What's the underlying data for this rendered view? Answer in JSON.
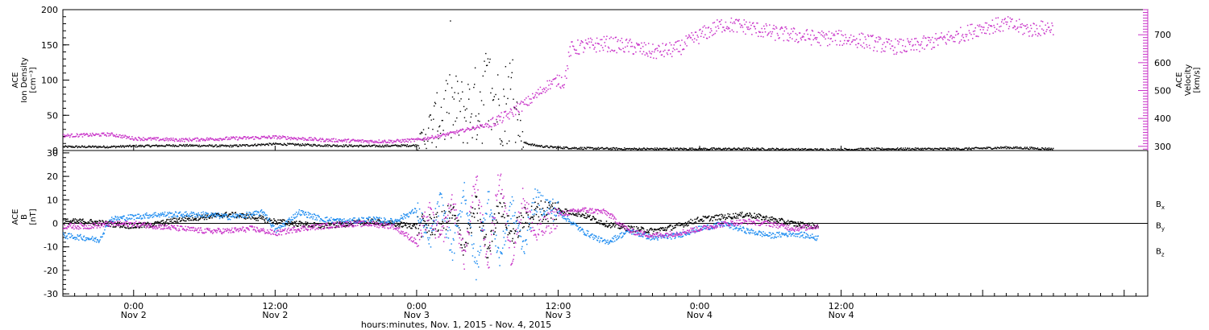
{
  "chart_data": [
    {
      "type": "scatter",
      "panel": "top",
      "ylabel_left": [
        "ACE",
        "Ion Density",
        "[cm⁻³]"
      ],
      "ylabel_right": [
        "ACE",
        "Velocity",
        "[km/s]"
      ],
      "ylim_left": [
        0,
        200
      ],
      "ylim_right": [
        285,
        790
      ],
      "yticks_left": [
        "0",
        "50",
        "100",
        "150",
        "200"
      ],
      "yticks_right": [
        "300",
        "400",
        "500",
        "600",
        "700"
      ],
      "x_hours_range": [
        -6,
        86
      ],
      "series": [
        {
          "axis": "left",
          "color": "#000000",
          "x": [
            -6,
            -2,
            0,
            4,
            8,
            12,
            16,
            20,
            24,
            25,
            26,
            27,
            28,
            29,
            30,
            31,
            32,
            33,
            33.5,
            34,
            35,
            36,
            38,
            42,
            46,
            52,
            58,
            64,
            70,
            72,
            74,
            76,
            78
          ],
          "values": [
            6,
            6,
            7,
            8,
            7,
            10,
            8,
            7,
            8,
            30,
            50,
            60,
            55,
            65,
            85,
            60,
            80,
            12,
            10,
            8,
            6,
            5,
            4,
            3,
            3,
            3,
            2,
            3,
            3,
            4,
            5,
            4,
            3
          ]
        },
        {
          "axis": "right",
          "color": "#c832c8",
          "x": [
            -6,
            -2,
            0,
            4,
            8,
            12,
            16,
            20,
            22,
            24,
            26,
            28,
            30,
            31,
            32,
            32.5,
            33,
            34,
            35,
            36,
            36.5,
            37,
            38,
            40,
            42,
            44,
            46,
            48,
            50,
            52,
            54,
            56,
            58,
            60,
            62,
            64,
            66,
            68,
            70,
            72,
            74,
            76,
            78
          ],
          "values": [
            340,
            345,
            330,
            325,
            330,
            335,
            325,
            320,
            320,
            325,
            340,
            360,
            380,
            400,
            420,
            440,
            450,
            480,
            520,
            540,
            535,
            650,
            660,
            670,
            660,
            640,
            650,
            700,
            740,
            730,
            710,
            700,
            690,
            690,
            680,
            660,
            660,
            680,
            700,
            730,
            740,
            720,
            730
          ]
        }
      ]
    },
    {
      "type": "scatter",
      "panel": "bottom",
      "ylabel": [
        "ACE",
        "B",
        "[nT]"
      ],
      "ylim": [
        -31,
        31
      ],
      "yticks": [
        "-30",
        "-20",
        "-10",
        "0",
        "10",
        "20",
        "30"
      ],
      "x_hours_range": [
        -6,
        86
      ],
      "xticks": [
        {
          "x": 0,
          "time": "0:00",
          "date": "Nov 2"
        },
        {
          "x": 12,
          "time": "12:00",
          "date": "Nov 2"
        },
        {
          "x": 24,
          "time": "0:00",
          "date": "Nov 3"
        },
        {
          "x": 36,
          "time": "12:00",
          "date": "Nov 3"
        },
        {
          "x": 48,
          "time": "0:00",
          "date": "Nov 4"
        },
        {
          "x": 60,
          "time": "12:00",
          "date": "Nov 4"
        }
      ],
      "xlabel": "hours:minutes, Nov. 1, 2015 - Nov. 4, 2015",
      "series": [
        {
          "name": "Bx",
          "color": "#000000",
          "x": [
            -6,
            -4,
            -2,
            0,
            2,
            4,
            6,
            8,
            10,
            12,
            14,
            16,
            18,
            20,
            22,
            24,
            26,
            27,
            28,
            29,
            30,
            31,
            32,
            33,
            34,
            36,
            38,
            40,
            42,
            44,
            46,
            48,
            50,
            52,
            54,
            56,
            58
          ],
          "values": [
            1,
            1,
            0,
            -1,
            0,
            2,
            3,
            4,
            3,
            1,
            0,
            -1,
            0,
            1,
            0,
            -1,
            0,
            5,
            -10,
            8,
            -12,
            10,
            -5,
            2,
            5,
            6,
            4,
            0,
            -2,
            -3,
            -1,
            2,
            3,
            4,
            2,
            0,
            -1
          ]
        },
        {
          "name": "By",
          "color": "#1e8cf0",
          "x": [
            -6,
            -4,
            -3,
            -2,
            0,
            2,
            4,
            6,
            8,
            10,
            11,
            12,
            14,
            16,
            18,
            20,
            22,
            24,
            25,
            26,
            27,
            28,
            29,
            30,
            31,
            32,
            33,
            34,
            36,
            38,
            40,
            42,
            44,
            46,
            48,
            50,
            52,
            54,
            56,
            58
          ],
          "values": [
            -5,
            -6,
            -7,
            2,
            3,
            4,
            4,
            4,
            3,
            4,
            5,
            -3,
            5,
            2,
            1,
            2,
            1,
            6,
            -8,
            10,
            -12,
            15,
            -20,
            12,
            -15,
            8,
            -10,
            10,
            5,
            -3,
            -8,
            -3,
            -6,
            -5,
            -2,
            0,
            -3,
            -5,
            -4,
            -6
          ]
        },
        {
          "name": "Bz",
          "color": "#c832c8",
          "x": [
            -6,
            -4,
            -2,
            0,
            2,
            4,
            6,
            8,
            10,
            12,
            14,
            16,
            18,
            20,
            22,
            24,
            25,
            26,
            27,
            28,
            29,
            30,
            31,
            32,
            33,
            34,
            36,
            38,
            40,
            42,
            44,
            46,
            48,
            50,
            52,
            54,
            56,
            58
          ],
          "values": [
            -1,
            -1,
            0,
            0,
            -1,
            -2,
            -3,
            -3,
            -2,
            -4,
            -2,
            -1,
            0,
            0,
            -1,
            -8,
            5,
            -7,
            10,
            -15,
            20,
            -18,
            22,
            -15,
            12,
            -5,
            4,
            6,
            5,
            -3,
            -5,
            -4,
            -2,
            0,
            1,
            0,
            -2,
            -1
          ]
        }
      ]
    }
  ]
}
